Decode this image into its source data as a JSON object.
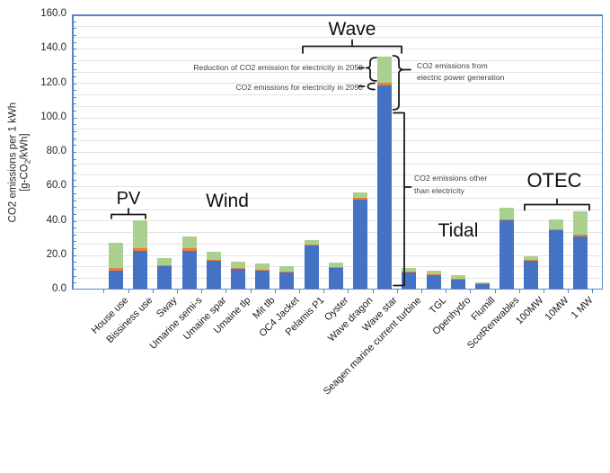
{
  "chart_data": {
    "type": "bar",
    "stacked": true,
    "title": "",
    "ylabel_line1": "CO2 emissions per 1 kWh",
    "ylabel_line2_pre": "[g-CO",
    "ylabel_line2_sub": "2",
    "ylabel_line2_post": "/kWh]",
    "ylim": [
      0,
      160
    ],
    "ytick_step": 20,
    "yticks": [
      [
        "0.0",
        0
      ],
      [
        "20.0",
        20
      ],
      [
        "40.0",
        40
      ],
      [
        "60.0",
        60
      ],
      [
        "80.0",
        80
      ],
      [
        "100.0",
        100
      ],
      [
        "120.0",
        120
      ],
      [
        "140.0",
        140
      ],
      [
        "160.0",
        160
      ]
    ],
    "minor_tick_step": 4,
    "gridline_step": 6.667,
    "grid": true,
    "legend_position": "none",
    "categories": [
      "House use",
      "Bissiness use",
      "Sway",
      "Umarine semi-s",
      "Umaine spar",
      "Umaine tlp",
      "Mit tlb",
      "OC4 Jacket",
      "Pelamis P1",
      "Oyster",
      "Wave dragon",
      "Wave star",
      "Seagen marine current turbine",
      "TGL",
      "Openhydro",
      "Flumill",
      "ScotRenwables",
      "100MW",
      "10MW",
      "1 MW"
    ],
    "series": [
      {
        "name": "CO2 emissions other than electricity",
        "color": "#4472C4",
        "values": [
          11.2,
          22.6,
          13.5,
          22.6,
          16.5,
          11.9,
          11.1,
          9.8,
          25.5,
          12.8,
          52.5,
          118.5,
          10.2,
          8.7,
          6.0,
          2.9,
          40.4,
          16.8,
          34.5,
          31.0
        ]
      },
      {
        "name": "CO2 emissions for electricity in 2050",
        "color": "#ED7D31",
        "values": [
          1.5,
          1.6,
          0.5,
          1.2,
          0.6,
          0.4,
          0.4,
          0.6,
          0.8,
          0.4,
          1.0,
          2.0,
          0.4,
          0.3,
          0.3,
          0.5,
          0.4,
          0.4,
          0.6,
          1.0
        ]
      },
      {
        "name": "Reduction of CO2 emission for electricity in 2050",
        "color": "#A9D08E",
        "values": [
          14.3,
          16.0,
          4.3,
          7.2,
          5.0,
          3.7,
          3.5,
          3.3,
          2.7,
          2.4,
          3.0,
          15.0,
          2.0,
          2.2,
          1.9,
          0.9,
          6.7,
          2.3,
          5.9,
          13.5
        ]
      }
    ]
  },
  "annotations": {
    "groups": [
      {
        "label": "PV"
      },
      {
        "label": "Wind"
      },
      {
        "label": "Wave"
      },
      {
        "label": "Tidal"
      },
      {
        "label": "OTEC"
      }
    ],
    "left_note_1": "Reduction of CO2 emission for electricity in 2050",
    "left_note_2": "CO2 emissions for electricity in 2050",
    "right_note_1_line1": "CO2 emissions from",
    "right_note_1_line2": "electric power generation",
    "right_note_2_line1": "CO2 emissions other",
    "right_note_2_line2": "than electricity"
  }
}
